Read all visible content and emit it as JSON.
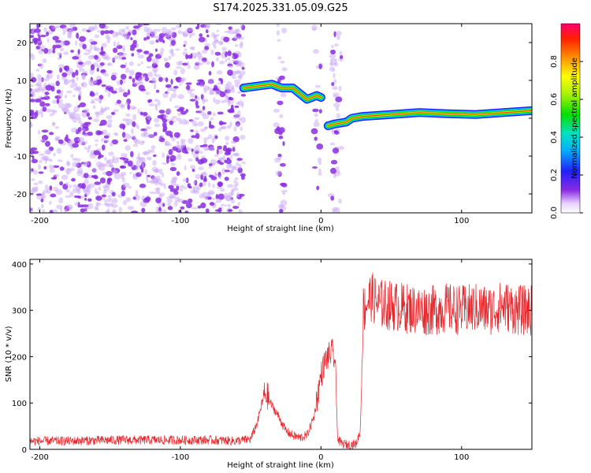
{
  "title": "S174.2025.331.05.09.G25",
  "colors": {
    "snr_line": "#e8262b",
    "scatter": "#8a2be2",
    "background": "#ffffff",
    "axis": "#000000"
  },
  "chart_data": [
    {
      "type": "heatmap",
      "name": "spectrogram",
      "xlabel": "Height of straight line (km)",
      "ylabel": "Frequency (Hz)",
      "xlim": [
        -207,
        150
      ],
      "ylim": [
        -25,
        25
      ],
      "xticks": [
        -200,
        -100,
        0,
        100
      ],
      "yticks": [
        -20,
        -10,
        0,
        10,
        20
      ],
      "colorbar": {
        "label": "Normalized spectral amplitude",
        "range": [
          0,
          1
        ],
        "ticks": [
          0.0,
          0.2,
          0.4,
          0.6,
          0.8
        ],
        "tick_labels": [
          "0.0",
          "0.2",
          "0.4",
          "0.6",
          "0.8"
        ]
      },
      "signal_track": {
        "x": [
          -55,
          -45,
          -35,
          -28,
          -20,
          -10,
          -3,
          0,
          5,
          10,
          18,
          22,
          30,
          50,
          70,
          90,
          110,
          130,
          150
        ],
        "frequency": [
          8,
          8.5,
          9,
          8,
          8,
          5,
          6,
          5.5,
          -2,
          -1.5,
          -1,
          0,
          0.5,
          1,
          1.5,
          1.2,
          1,
          1.5,
          2
        ]
      }
    },
    {
      "type": "line",
      "name": "snr",
      "xlabel": "Height of straight line (km)",
      "ylabel": "SNR (10 * v/v)",
      "xlim": [
        -207,
        150
      ],
      "ylim": [
        0,
        410
      ],
      "xticks": [
        -200,
        -100,
        0,
        100
      ],
      "yticks": [
        0,
        100,
        200,
        300,
        400
      ],
      "series": [
        {
          "name": "SNR",
          "x": [
            -207,
            -180,
            -150,
            -120,
            -100,
            -80,
            -60,
            -50,
            -45,
            -42,
            -40,
            -38,
            -35,
            -30,
            -25,
            -20,
            -15,
            -10,
            -5,
            0,
            3,
            5,
            8,
            10,
            12,
            15,
            20,
            25,
            28,
            30,
            33,
            36,
            40,
            50,
            60,
            70,
            80,
            90,
            100,
            110,
            120,
            130,
            140,
            150
          ],
          "y": [
            18,
            18,
            20,
            20,
            20,
            20,
            18,
            22,
            60,
            100,
            120,
            115,
            95,
            70,
            40,
            30,
            25,
            30,
            70,
            160,
            190,
            200,
            210,
            190,
            20,
            12,
            10,
            12,
            40,
            300,
            320,
            330,
            315,
            310,
            305,
            300,
            300,
            305,
            300,
            305,
            300,
            310,
            300,
            300
          ]
        }
      ]
    }
  ]
}
